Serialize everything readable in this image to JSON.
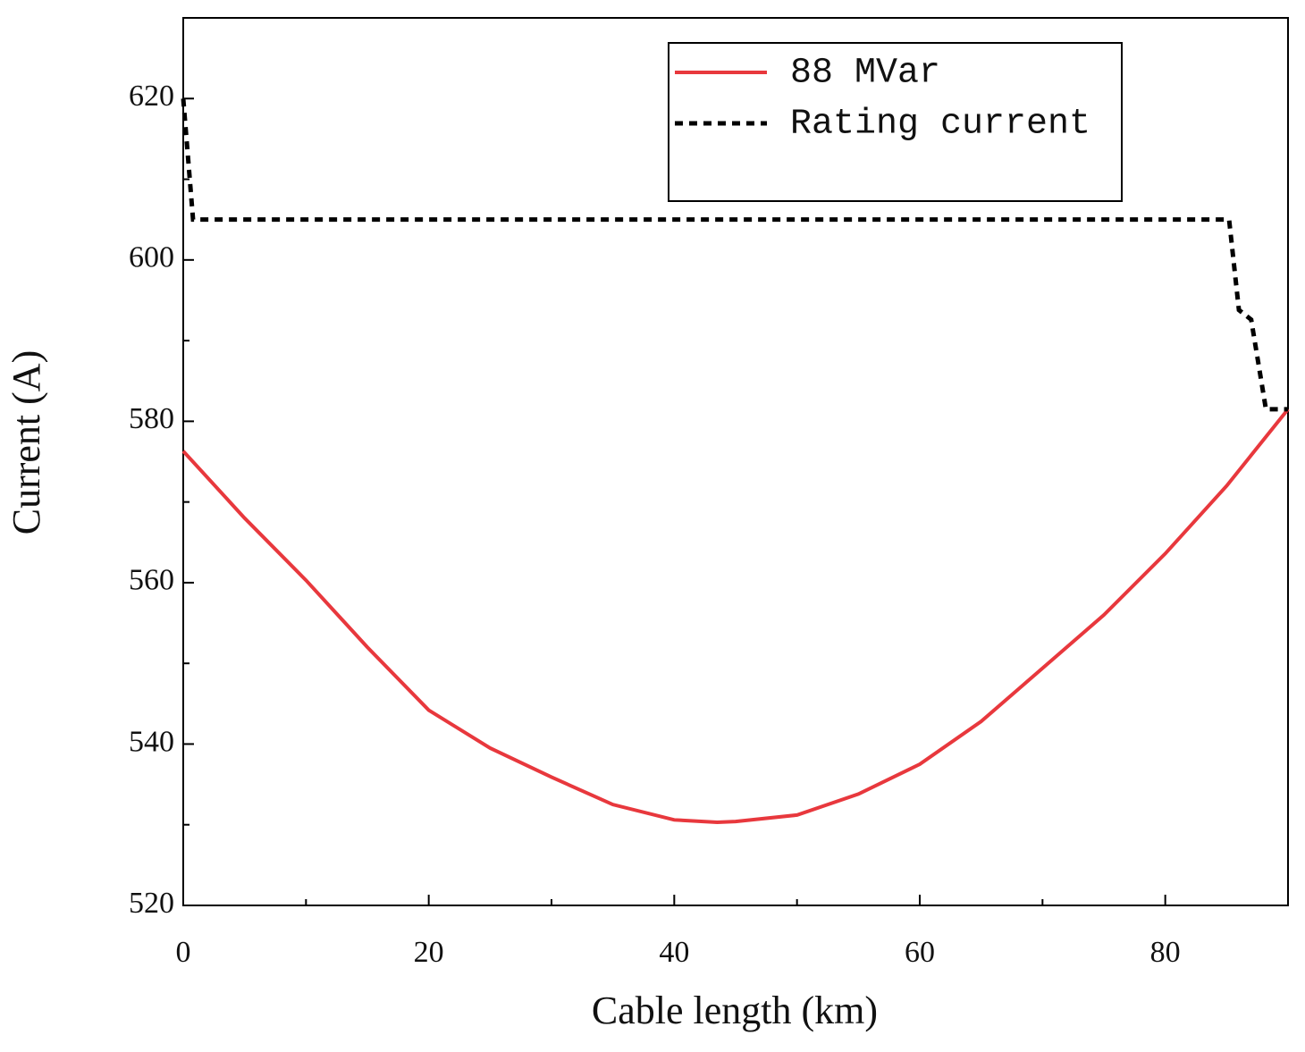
{
  "chart_data": {
    "type": "line",
    "xlabel": "Cable length (km)",
    "ylabel": "Current (A)",
    "xlim": [
      0,
      90
    ],
    "ylim": [
      520,
      630
    ],
    "xticks": [
      0,
      20,
      40,
      60,
      80
    ],
    "yticks": [
      520,
      540,
      560,
      580,
      600,
      620
    ],
    "xticks_minor": [
      10,
      30,
      50,
      70,
      90
    ],
    "yticks_minor": [
      530,
      550,
      570,
      590,
      610
    ],
    "legend": "upper right",
    "series": [
      {
        "name": "88 MVar",
        "color": "#e8383d",
        "style": "solid",
        "x": [
          0,
          5,
          10,
          15,
          20,
          25,
          30,
          35,
          40,
          43.5,
          45,
          50,
          55,
          60,
          65,
          70,
          75,
          80,
          85,
          90
        ],
        "values": [
          576.3,
          568,
          560.3,
          552,
          544.2,
          539.5,
          535.9,
          532.5,
          530.6,
          530.3,
          530.4,
          531.2,
          533.8,
          537.5,
          542.8,
          549.4,
          556,
          563.6,
          572,
          581.5
        ]
      },
      {
        "name": "Rating current",
        "color": "#000000",
        "style": "dotted",
        "x": [
          0,
          0.8,
          85.2,
          86,
          87,
          88.2,
          90
        ],
        "values": [
          620,
          605,
          605,
          593.8,
          592.6,
          581.5,
          581.5
        ]
      }
    ]
  }
}
